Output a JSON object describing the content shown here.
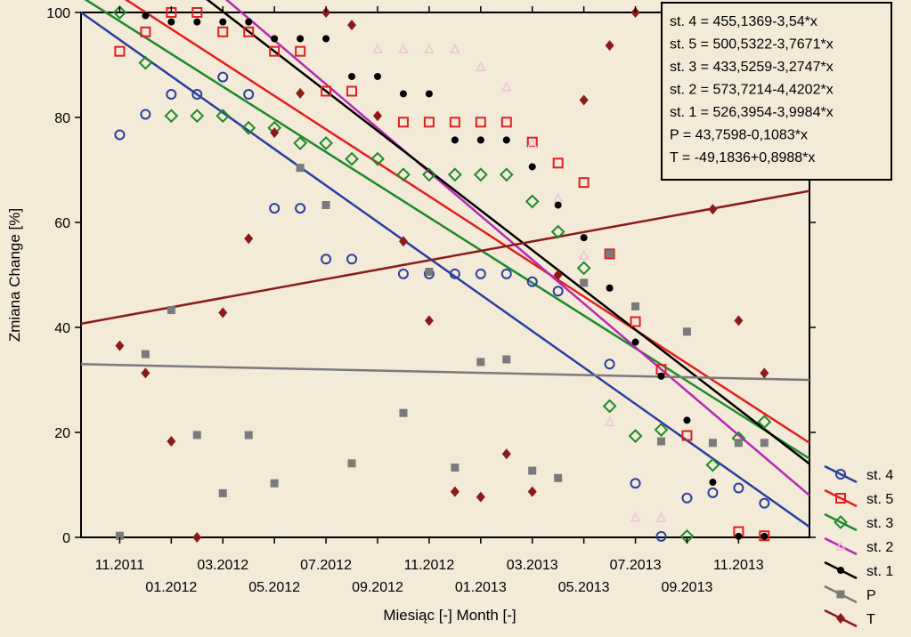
{
  "chart_data": {
    "type": "scatter",
    "title": "",
    "xlabel": "Miesiąc [-]  Month [-]",
    "ylabel": "Zmiana Change [%]",
    "ylim": [
      0,
      100
    ],
    "yticks": [
      0,
      20,
      40,
      60,
      80,
      100
    ],
    "grid": false,
    "legend_position": "bottom-right",
    "x_units": "month index (1 = 10.2011)",
    "xlim": [
      -0.5,
      27.75
    ],
    "xticks": [
      {
        "x": 1,
        "label": "11.2011",
        "row": 1
      },
      {
        "x": 3,
        "label": "01.2012",
        "row": 2
      },
      {
        "x": 5,
        "label": "03.2012",
        "row": 1
      },
      {
        "x": 7,
        "label": "05.2012",
        "row": 2
      },
      {
        "x": 9,
        "label": "07.2012",
        "row": 1
      },
      {
        "x": 11,
        "label": "09.2012",
        "row": 2
      },
      {
        "x": 13,
        "label": "11.2012",
        "row": 1
      },
      {
        "x": 15,
        "label": "01.2013",
        "row": 2
      },
      {
        "x": 17,
        "label": "03.2013",
        "row": 1
      },
      {
        "x": 19,
        "label": "05.2013",
        "row": 2
      },
      {
        "x": 21,
        "label": "07.2013",
        "row": 1
      },
      {
        "x": 23,
        "label": "09.2013",
        "row": 2
      },
      {
        "x": 25,
        "label": "11.2013",
        "row": 1
      }
    ],
    "equations": [
      "st. 4 = 455,1369-3,54*x",
      "st. 5 = 500,5322-3,7671*x",
      "st. 3 = 433,5259-3,2747*x",
      "st. 2 = 573,7214-4,4202*x",
      "st. 1 = 526,3954-3,9984*x",
      "P = 43,7598-0,1083*x",
      "T = -49,1836+0,8988*x"
    ],
    "series": [
      {
        "name": "st. 4",
        "color": "#2b3e9e",
        "marker": "circle",
        "line": {
          "y_at_xmin": 100.0,
          "y_at_xmax": 2.0
        },
        "points": [
          [
            1,
            76.7
          ],
          [
            2,
            80.6
          ],
          [
            3,
            84.4
          ],
          [
            4,
            84.4
          ],
          [
            5,
            87.7
          ],
          [
            6,
            84.4
          ],
          [
            7,
            62.7
          ],
          [
            8,
            62.7
          ],
          [
            9,
            53.0
          ],
          [
            10,
            53.0
          ],
          [
            12,
            50.2
          ],
          [
            13,
            50.2
          ],
          [
            14,
            50.2
          ],
          [
            15,
            50.2
          ],
          [
            16,
            50.2
          ],
          [
            17,
            48.7
          ],
          [
            18,
            46.9
          ],
          [
            20,
            33.0
          ],
          [
            21,
            10.3
          ],
          [
            22,
            0.2
          ],
          [
            23,
            7.5
          ],
          [
            24,
            8.5
          ],
          [
            25,
            9.4
          ],
          [
            26,
            6.5
          ]
        ]
      },
      {
        "name": "st. 5",
        "color": "#e02020",
        "marker": "square",
        "line": {
          "y_at_xmin": 108.0,
          "y_at_xmax": 18.0
        },
        "points": [
          [
            1,
            92.6
          ],
          [
            2,
            96.3
          ],
          [
            3,
            100
          ],
          [
            4,
            100
          ],
          [
            5,
            96.3
          ],
          [
            6,
            96.3
          ],
          [
            7,
            92.6
          ],
          [
            8,
            92.6
          ],
          [
            9,
            85.0
          ],
          [
            10,
            85.0
          ],
          [
            12,
            79.1
          ],
          [
            13,
            79.1
          ],
          [
            14,
            79.1
          ],
          [
            15,
            79.1
          ],
          [
            16,
            79.1
          ],
          [
            17,
            75.3
          ],
          [
            18,
            71.3
          ],
          [
            19,
            67.6
          ],
          [
            20,
            54.0
          ],
          [
            21,
            41.1
          ],
          [
            22,
            32.0
          ],
          [
            23,
            19.4
          ],
          [
            25,
            1.1
          ],
          [
            26,
            0.3
          ]
        ]
      },
      {
        "name": "st. 3",
        "color": "#1e8a2a",
        "marker": "diamond",
        "line": {
          "y_at_xmin": 103.0,
          "y_at_xmax": 15.0
        },
        "points": [
          [
            1,
            100
          ],
          [
            2,
            90.4
          ],
          [
            3,
            80.3
          ],
          [
            4,
            80.3
          ],
          [
            5,
            80.3
          ],
          [
            6,
            78.0
          ],
          [
            7,
            78.0
          ],
          [
            8,
            75.1
          ],
          [
            9,
            75.1
          ],
          [
            10,
            72.1
          ],
          [
            11,
            72.1
          ],
          [
            12,
            69.1
          ],
          [
            13,
            69.1
          ],
          [
            14,
            69.1
          ],
          [
            15,
            69.1
          ],
          [
            16,
            69.1
          ],
          [
            17,
            64.0
          ],
          [
            18,
            58.2
          ],
          [
            19,
            51.3
          ],
          [
            20,
            25.0
          ],
          [
            21,
            19.3
          ],
          [
            22,
            20.5
          ],
          [
            23,
            0.2
          ],
          [
            24,
            13.8
          ],
          [
            25,
            18.9
          ],
          [
            26,
            22.0
          ]
        ]
      },
      {
        "name": "st. 2",
        "color": "#b42ab4",
        "marker": "triangle",
        "line": {
          "y_at_xmin": 126.0,
          "y_at_xmax": 8.0
        },
        "points": [
          [
            11,
            93.0
          ],
          [
            12,
            93.0
          ],
          [
            13,
            93.0
          ],
          [
            14,
            93.0
          ],
          [
            15,
            89.6
          ],
          [
            16,
            85.8
          ],
          [
            17,
            75.0
          ],
          [
            18,
            64.5
          ],
          [
            19,
            53.7
          ],
          [
            20,
            22.0
          ],
          [
            21,
            3.8
          ],
          [
            22,
            3.7
          ]
        ]
      },
      {
        "name": "st. 1",
        "color": "#000000",
        "marker": "dot",
        "line": {
          "y_at_xmin": 121.0,
          "y_at_xmax": 14.0
        },
        "points": [
          [
            2,
            99.4
          ],
          [
            3,
            98.2
          ],
          [
            4,
            98.2
          ],
          [
            5,
            98.2
          ],
          [
            6,
            98.2
          ],
          [
            7,
            95.0
          ],
          [
            8,
            95.0
          ],
          [
            9,
            95.0
          ],
          [
            10,
            87.8
          ],
          [
            11,
            87.8
          ],
          [
            12,
            84.5
          ],
          [
            13,
            84.5
          ],
          [
            14,
            75.7
          ],
          [
            15,
            75.7
          ],
          [
            16,
            75.7
          ],
          [
            17,
            70.6
          ],
          [
            18,
            63.3
          ],
          [
            19,
            57.1
          ],
          [
            20,
            47.5
          ],
          [
            21,
            37.2
          ],
          [
            22,
            30.7
          ],
          [
            23,
            22.3
          ],
          [
            24,
            10.5
          ],
          [
            25,
            0.2
          ],
          [
            26,
            0.2
          ]
        ]
      },
      {
        "name": "P",
        "color": "#7a7a7a",
        "marker": "square-filled",
        "line": {
          "y_at_xmin": 33.0,
          "y_at_xmax": 30.0
        },
        "points": [
          [
            1,
            0.3
          ],
          [
            2,
            34.9
          ],
          [
            3,
            43.3
          ],
          [
            4,
            19.5
          ],
          [
            5,
            8.4
          ],
          [
            6,
            19.5
          ],
          [
            7,
            10.3
          ],
          [
            8,
            70.4
          ],
          [
            9,
            63.3
          ],
          [
            10,
            14.1
          ],
          [
            12,
            23.7
          ],
          [
            13,
            50.6
          ],
          [
            14,
            13.3
          ],
          [
            15,
            33.4
          ],
          [
            16,
            33.9
          ],
          [
            17,
            12.7
          ],
          [
            18,
            11.3
          ],
          [
            19,
            48.5
          ],
          [
            20,
            54.0
          ],
          [
            21,
            44.0
          ],
          [
            22,
            18.3
          ],
          [
            23,
            39.2
          ],
          [
            24,
            18.0
          ],
          [
            25,
            18.0
          ],
          [
            26,
            18.0
          ]
        ]
      },
      {
        "name": "T",
        "color": "#8b1a1a",
        "marker": "diamond-filled",
        "line": {
          "y_at_xmin": 40.7,
          "y_at_xmax": 66.0
        },
        "points": [
          [
            1,
            36.5
          ],
          [
            2,
            31.3
          ],
          [
            3,
            18.3
          ],
          [
            4,
            0.0
          ],
          [
            5,
            42.8
          ],
          [
            6,
            56.9
          ],
          [
            7,
            77.1
          ],
          [
            8,
            84.6
          ],
          [
            9,
            100
          ],
          [
            10,
            97.6
          ],
          [
            11,
            80.3
          ],
          [
            12,
            56.4
          ],
          [
            13,
            41.3
          ],
          [
            14,
            8.7
          ],
          [
            15,
            7.7
          ],
          [
            16,
            15.9
          ],
          [
            17,
            8.7
          ],
          [
            18,
            50.0
          ],
          [
            19,
            83.3
          ],
          [
            20,
            93.7
          ],
          [
            21,
            100
          ],
          [
            24,
            62.5
          ],
          [
            25,
            41.3
          ],
          [
            26,
            31.3
          ]
        ]
      }
    ]
  }
}
